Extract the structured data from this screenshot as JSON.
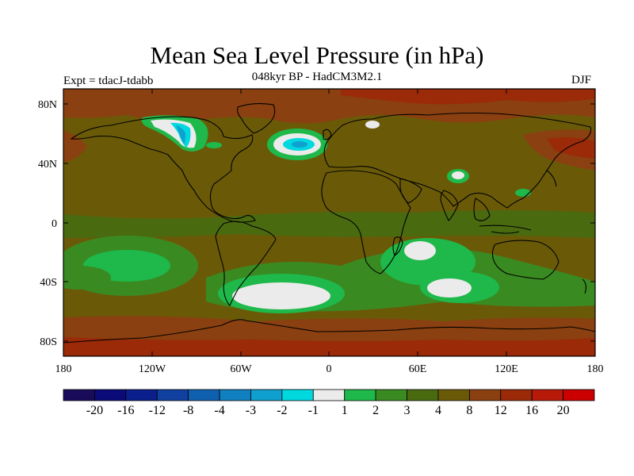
{
  "header": {
    "title": "Mean Sea Level Pressure (in hPa)",
    "subtitle": "048kyr BP - HadCM3M2.1",
    "experiment": "Expt = tdacJ-tdabb",
    "season": "DJF"
  },
  "axes": {
    "lat_labels": [
      "80N",
      "40N",
      "0",
      "40S",
      "80S"
    ],
    "lon_labels": [
      "180",
      "120W",
      "60W",
      "0",
      "60E",
      "120E",
      "180"
    ]
  },
  "colorbar": {
    "labels": [
      "-20",
      "-16",
      "-12",
      "-8",
      "-4",
      "-3",
      "-2",
      "-1",
      "1",
      "2",
      "3",
      "4",
      "8",
      "12",
      "16",
      "20"
    ],
    "colors": [
      "#1a0a5a",
      "#0a0a78",
      "#0a1f8c",
      "#1040a0",
      "#1060b0",
      "#1080c0",
      "#10a0d0",
      "#00d8e0",
      "#ebebeb",
      "#1fb84a",
      "#3a8a22",
      "#4a6a10",
      "#6a5a08",
      "#8a4010",
      "#9a2a08",
      "#b81a0a",
      "#cc0000"
    ]
  },
  "map": {
    "base_color": "#6a5a08",
    "features": [
      {
        "name": "north-pacific-high",
        "level": "12"
      },
      {
        "name": "north-atlantic-low",
        "level": "-2"
      },
      {
        "name": "north-america-ice-sheet-low",
        "level": "-3"
      },
      {
        "name": "tibetan-low",
        "level": "-1"
      },
      {
        "name": "south-atlantic-low",
        "level": "-1"
      },
      {
        "name": "south-indian-low",
        "level": "-1"
      },
      {
        "name": "south-pacific-low",
        "level": "2"
      },
      {
        "name": "antarctic-high",
        "level": "12"
      }
    ]
  }
}
